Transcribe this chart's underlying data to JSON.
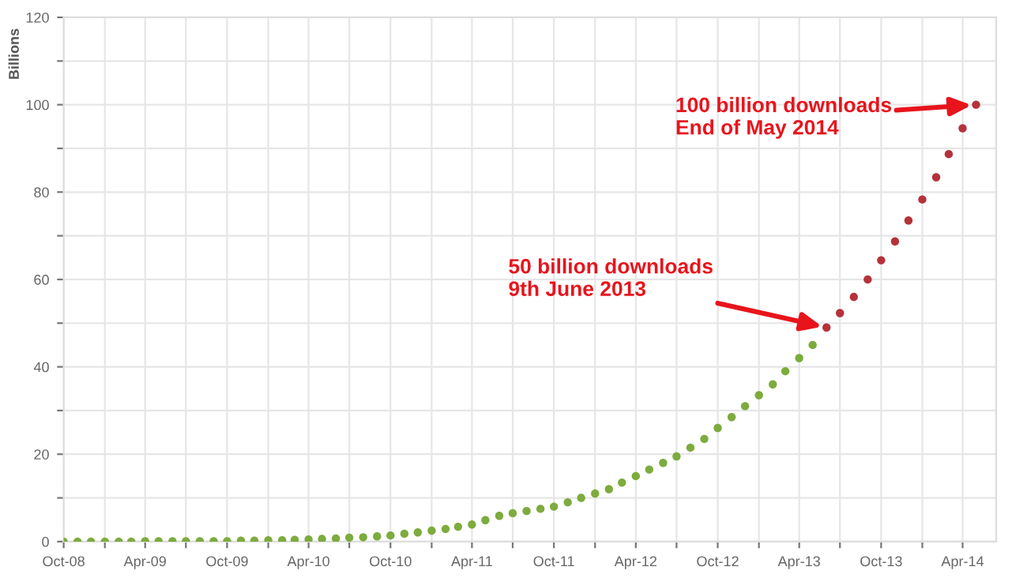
{
  "chart_data": {
    "type": "scatter",
    "ylabel": "Billions",
    "series": [
      {
        "color": "#7dab3d",
        "x": [
          "2008-10",
          "2008-11",
          "2008-12",
          "2009-01",
          "2009-02",
          "2009-03",
          "2009-04",
          "2009-05",
          "2009-06",
          "2009-07",
          "2009-08",
          "2009-09",
          "2009-10",
          "2009-11",
          "2009-12",
          "2010-01",
          "2010-02",
          "2010-03",
          "2010-04",
          "2010-05",
          "2010-06",
          "2010-07",
          "2010-08",
          "2010-09",
          "2010-10",
          "2010-11",
          "2010-12",
          "2011-01",
          "2011-02",
          "2011-03",
          "2011-04",
          "2011-05",
          "2011-06",
          "2011-07",
          "2011-08",
          "2011-09",
          "2011-10",
          "2011-11",
          "2011-12",
          "2012-01",
          "2012-02",
          "2012-03",
          "2012-04",
          "2012-05",
          "2012-06",
          "2012-07",
          "2012-08",
          "2012-09",
          "2012-10",
          "2012-11",
          "2012-12",
          "2013-01",
          "2013-02",
          "2013-03",
          "2013-04",
          "2013-05"
        ],
        "values": [
          0,
          0,
          0,
          0,
          0,
          0,
          0.1,
          0.1,
          0.1,
          0.1,
          0.1,
          0.1,
          0.1,
          0.2,
          0.2,
          0.3,
          0.3,
          0.4,
          0.5,
          0.6,
          0.7,
          0.9,
          1.0,
          1.2,
          1.4,
          1.8,
          2.1,
          2.5,
          2.9,
          3.4,
          3.9,
          4.9,
          5.9,
          6.5,
          7.0,
          7.5,
          8.0,
          9,
          10,
          11,
          12,
          13.5,
          15,
          16.5,
          18,
          19.5,
          21.5,
          23.5,
          26,
          28.5,
          31,
          33.5,
          36,
          39,
          42,
          45
        ]
      },
      {
        "color": "#b5323a",
        "x": [
          "2013-06",
          "2013-07",
          "2013-08",
          "2013-09",
          "2013-10",
          "2013-11",
          "2013-12",
          "2014-01",
          "2014-02",
          "2014-03",
          "2014-04",
          "2014-05"
        ],
        "values": [
          49,
          52.3,
          56,
          60,
          64.4,
          68.7,
          73.5,
          78.3,
          83.4,
          88.7,
          94.6,
          100
        ]
      }
    ],
    "annotations": [
      {
        "text": "50 billion downloads\n9th June 2013",
        "x": "2013-06",
        "y": 49
      },
      {
        "text": "100 billion downloads\nEnd of May 2014",
        "x": "2014-05",
        "y": 100
      }
    ],
    "marker": "circle",
    "grid": true,
    "xlim": [
      "2008-10-01",
      "2014-06-15"
    ],
    "xticks": [
      {
        "value": "2008-10-01",
        "label": "Oct-08"
      },
      {
        "value": "2009-01-01",
        "label": null
      },
      {
        "value": "2009-04-01",
        "label": "Apr-09"
      },
      {
        "value": "2009-07-01",
        "label": null
      },
      {
        "value": "2009-10-01",
        "label": "Oct-09"
      },
      {
        "value": "2010-01-01",
        "label": null
      },
      {
        "value": "2010-04-01",
        "label": "Apr-10"
      },
      {
        "value": "2010-07-01",
        "label": null
      },
      {
        "value": "2010-10-01",
        "label": "Oct-10"
      },
      {
        "value": "2011-01-01",
        "label": null
      },
      {
        "value": "2011-04-01",
        "label": "Apr-11"
      },
      {
        "value": "2011-07-01",
        "label": null
      },
      {
        "value": "2011-10-01",
        "label": "Oct-11"
      },
      {
        "value": "2012-01-01",
        "label": null
      },
      {
        "value": "2012-04-01",
        "label": "Apr-12"
      },
      {
        "value": "2012-07-01",
        "label": null
      },
      {
        "value": "2012-10-01",
        "label": "Oct-12"
      },
      {
        "value": "2013-01-01",
        "label": null
      },
      {
        "value": "2013-04-01",
        "label": "Apr-13"
      },
      {
        "value": "2013-07-01",
        "label": null
      },
      {
        "value": "2013-10-01",
        "label": "Oct-13"
      },
      {
        "value": "2014-01-01",
        "label": null
      },
      {
        "value": "2014-04-01",
        "label": "Apr-14"
      }
    ],
    "ylim": [
      0,
      120
    ],
    "yticks": [
      0,
      {
        "value": 10,
        "label": null
      },
      20,
      {
        "value": 30,
        "label": null
      },
      40,
      {
        "value": 50,
        "label": null
      },
      60,
      {
        "value": 70,
        "label": null
      },
      80,
      {
        "value": 90,
        "label": null
      },
      100,
      {
        "value": 110,
        "label": null
      },
      120
    ]
  }
}
